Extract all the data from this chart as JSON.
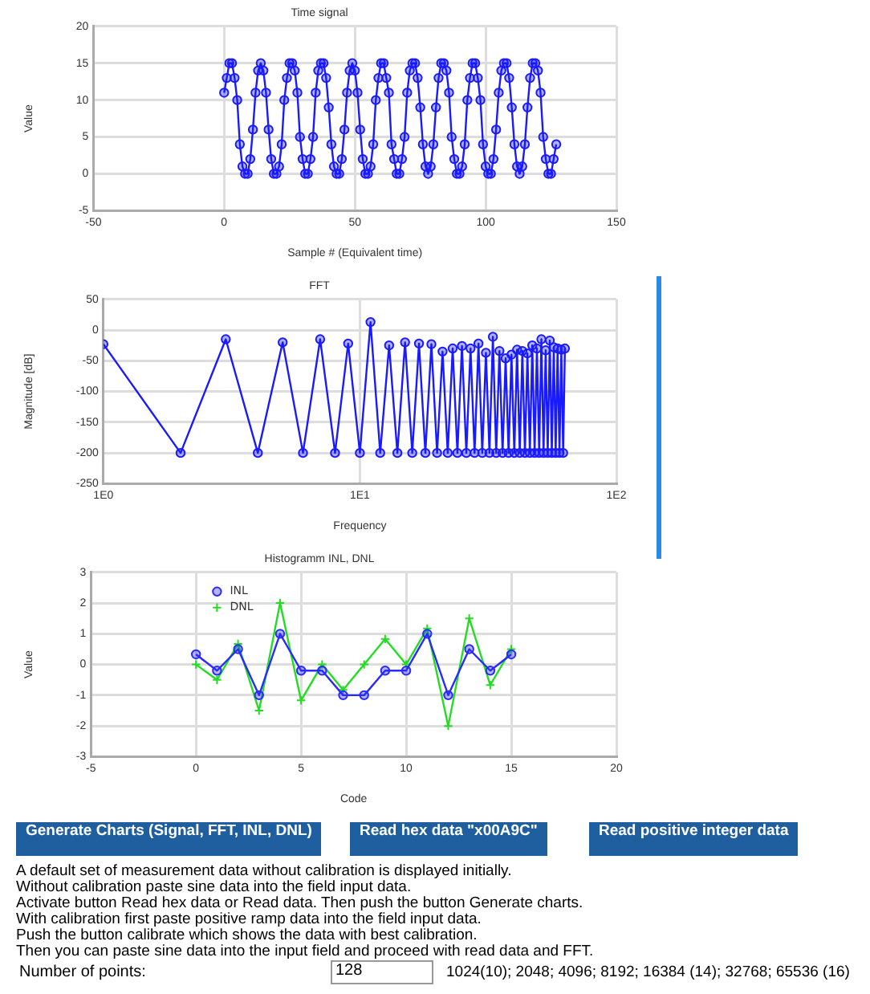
{
  "chart_data": [
    {
      "type": "line",
      "title": "Time signal",
      "xlabel": "Sample # (Equivalent time)",
      "ylabel": "Value",
      "marker": "circle",
      "grid": true,
      "xlim": [
        -50,
        150
      ],
      "xticks": [
        -50,
        0,
        50,
        100,
        150
      ],
      "ylim": [
        -5,
        20
      ],
      "yticks": [
        -5,
        0,
        5,
        10,
        15,
        20
      ],
      "x": [
        0,
        1,
        2,
        3,
        4,
        5,
        6,
        7,
        8,
        9,
        10,
        11,
        12,
        13,
        14,
        15,
        16,
        17,
        18,
        19,
        20,
        21,
        22,
        23,
        24,
        25,
        26,
        27,
        28,
        29,
        30,
        31,
        32,
        33,
        34,
        35,
        36,
        37,
        38,
        39,
        40,
        41,
        42,
        43,
        44,
        45,
        46,
        47,
        48,
        49,
        50,
        51,
        52,
        53,
        54,
        55,
        56,
        57,
        58,
        59,
        60,
        61,
        62,
        63,
        64,
        65,
        66,
        67,
        68,
        69,
        70,
        71,
        72,
        73,
        74,
        75,
        76,
        77,
        78,
        79,
        80,
        81,
        82,
        83,
        84,
        85,
        86,
        87,
        88,
        89,
        90,
        91,
        92,
        93,
        94,
        95,
        96,
        97,
        98,
        99,
        100,
        101,
        102,
        103,
        104,
        105,
        106,
        107,
        108,
        109,
        110,
        111,
        112,
        113,
        114,
        115,
        116,
        117,
        118,
        119,
        120,
        121,
        122,
        123,
        124,
        125,
        126,
        127
      ],
      "series": [
        {
          "color": "#1a1aff",
          "values": [
            11,
            13,
            15,
            15,
            13,
            10,
            4,
            1,
            0,
            0,
            2,
            6,
            11,
            14,
            15,
            14,
            11,
            6,
            2,
            0,
            0,
            1,
            4,
            10,
            13,
            15,
            15,
            14,
            11,
            5,
            2,
            0,
            0,
            2,
            5,
            11,
            14,
            15,
            15,
            13,
            9,
            4,
            1,
            0,
            0,
            2,
            6,
            11,
            14,
            15,
            14,
            11,
            6,
            2,
            0,
            0,
            1,
            4,
            10,
            13,
            15,
            15,
            13,
            11,
            4,
            2,
            0,
            0,
            2,
            5,
            11,
            14,
            15,
            15,
            13,
            9,
            4,
            1,
            0,
            1,
            4,
            9,
            13,
            15,
            15,
            14,
            11,
            5,
            2,
            0,
            0,
            1,
            4,
            10,
            13,
            15,
            15,
            13,
            10,
            4,
            1,
            0,
            0,
            2,
            6,
            11,
            14,
            15,
            15,
            13,
            9,
            4,
            1,
            0,
            1,
            4,
            9,
            13,
            15,
            15,
            14,
            11,
            5,
            2,
            0,
            0,
            2,
            4
          ]
        }
      ]
    },
    {
      "type": "line",
      "title": "FFT",
      "xlabel": "Frequency",
      "ylabel": "Magnitude [dB]",
      "marker": "circle",
      "grid": true,
      "log": "x",
      "xlim": [
        1,
        100
      ],
      "xticks": [
        {
          "value": 1,
          "label": "1E0"
        },
        {
          "value": 10,
          "label": "1E1"
        },
        {
          "value": 100,
          "label": "1E2"
        }
      ],
      "ylim": [
        -250,
        50
      ],
      "yticks": [
        -250,
        -200,
        -150,
        -100,
        -50,
        0,
        50
      ],
      "x": [
        1,
        2,
        3,
        4,
        5,
        6,
        7,
        8,
        9,
        10,
        11,
        12,
        13,
        14,
        15,
        16,
        17,
        18,
        19,
        20,
        21,
        22,
        23,
        24,
        25,
        26,
        27,
        28,
        29,
        30,
        31,
        32,
        33,
        34,
        35,
        36,
        37,
        38,
        39,
        40,
        41,
        42,
        43,
        44,
        45,
        46,
        47,
        48,
        49,
        50,
        51,
        52,
        53,
        54,
        55,
        56,
        57,
        58,
        59,
        60,
        61,
        62,
        63
      ],
      "series": [
        {
          "color": "#1a1aff",
          "values": [
            -23,
            -200,
            -15,
            -200,
            -20,
            -200,
            -15,
            -200,
            -22,
            -200,
            13,
            -200,
            -25,
            -200,
            -20,
            -200,
            -22,
            -200,
            -23,
            -200,
            -35,
            -200,
            -30,
            -200,
            -26,
            -200,
            -30,
            -200,
            -22,
            -200,
            -37,
            -200,
            -11,
            -200,
            -34,
            -200,
            -46,
            -200,
            -40,
            -200,
            -32,
            -200,
            -34,
            -200,
            -38,
            -200,
            -25,
            -200,
            -30,
            -200,
            -15,
            -200,
            -33,
            -200,
            -17,
            -200,
            -28,
            -200,
            -30,
            -200,
            -32,
            -200,
            -30
          ]
        }
      ]
    },
    {
      "type": "line",
      "title": "Histogramm INL, DNL",
      "xlabel": "Code",
      "ylabel": "Value",
      "grid": true,
      "legend": "top left",
      "xlim": [
        -5,
        20
      ],
      "xticks": [
        -5,
        0,
        5,
        10,
        15,
        20
      ],
      "ylim": [
        -3,
        3
      ],
      "yticks": [
        -3,
        -2,
        -1,
        0,
        1,
        2,
        3
      ],
      "x": [
        0,
        1,
        2,
        3,
        4,
        5,
        6,
        7,
        8,
        9,
        10,
        11,
        12,
        13,
        14,
        15
      ],
      "series": [
        {
          "name": "INL",
          "color": "#2a2aff",
          "marker": "circle",
          "values": [
            0.33,
            -0.2,
            0.5,
            -1,
            1,
            -0.2,
            -0.2,
            -1,
            -1,
            -0.2,
            -0.2,
            1,
            -1,
            0.5,
            -0.2,
            0.33
          ]
        },
        {
          "name": "DNL",
          "color": "#22dd22",
          "marker": "cross",
          "values": [
            0,
            -0.5,
            0.67,
            -1.5,
            2,
            -1.17,
            0,
            -0.83,
            0,
            0.83,
            0,
            1.17,
            -2,
            1.5,
            -0.67,
            0.5
          ]
        }
      ]
    },
    {
      "type": "other",
      "annotations": [
        "Generate Charts (Signal, FFT, INL, DNL)",
        "Read hex data \"x00A9C\"",
        "Read positive integer data",
        "A default set of measurement data without calibration is displayed initially.",
        "Without calibration paste sine data into the field input data.",
        "Activate button Read hex data or Read data. Then push the button Generate charts.",
        "With calibration first paste positive ramp data into the field input data.",
        "Push the button calibrate which shows the data with best calibration.",
        "Then you can paste sine data into the input field and proceed with read data and FFT.",
        "Number of points:",
        "128",
        "1024(10); 2048; 4096; 8192; 16384 (14); 32768; 65536 (16)"
      ]
    }
  ]
}
